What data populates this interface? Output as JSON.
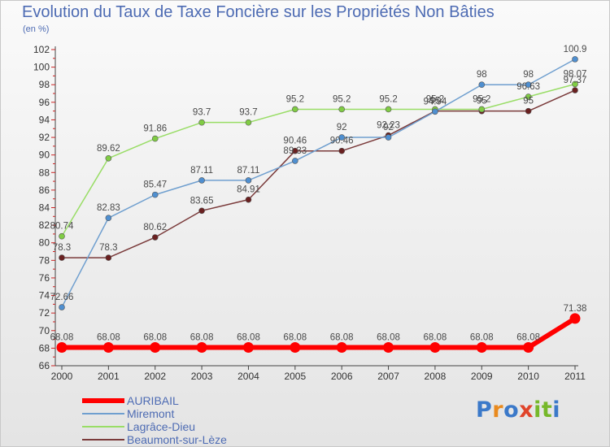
{
  "header": {
    "title": "Evolution du Taux de Taxe Foncière sur les Propriétés Non Bâties",
    "unit": "(en %)"
  },
  "logo": {
    "text": "Proxiti"
  },
  "chart_data": {
    "type": "line",
    "title": "Evolution du Taux de Taxe Foncière sur les Propriétés Non Bâties",
    "ylabel": "(en %)",
    "xlabel": "",
    "ylim": [
      66,
      102
    ],
    "yticks": [
      66,
      68,
      70,
      72,
      74,
      76,
      78,
      80,
      82,
      84,
      86,
      88,
      90,
      92,
      94,
      96,
      98,
      100,
      102
    ],
    "grid": false,
    "legend_position": "bottom",
    "x": [
      "2000",
      "2001",
      "2002",
      "2003",
      "2004",
      "2005",
      "2006",
      "2007",
      "2008",
      "2009",
      "2010",
      "2011"
    ],
    "series": [
      {
        "name": "AURIBAIL",
        "color": "#ff0000",
        "values": [
          68.08,
          68.08,
          68.08,
          68.08,
          68.08,
          68.08,
          68.08,
          68.08,
          68.08,
          68.08,
          68.08,
          71.38
        ],
        "labels": [
          "68.08",
          "68.08",
          "68.08",
          "68.08",
          "68.08",
          "68.08",
          "68.08",
          "68.08",
          "68.08",
          "68.08",
          "68.08",
          "71.38"
        ]
      },
      {
        "name": "Miremont",
        "color": "#6f9fcf",
        "marker": "#4f8fd0",
        "values": [
          72.66,
          82.83,
          85.47,
          87.11,
          87.11,
          89.33,
          92,
          92,
          94.94,
          98,
          98,
          100.9
        ],
        "labels": [
          "72.66",
          "82.83",
          "85.47",
          "87.11",
          "87.11",
          "89.33",
          "92",
          "92",
          "94.94",
          "98",
          "98",
          "100.9"
        ]
      },
      {
        "name": "Lagrâce-Dieu",
        "color": "#99dd66",
        "marker": "#80cc44",
        "values": [
          80.74,
          89.62,
          91.86,
          93.7,
          93.7,
          95.2,
          95.2,
          95.2,
          95.2,
          95.2,
          96.63,
          98.07
        ],
        "labels": [
          "80.74",
          "89.62",
          "91.86",
          "93.7",
          "93.7",
          "95.2",
          "95.2",
          "95.2",
          "95.2",
          "95.2",
          "96.63",
          "98.07"
        ]
      },
      {
        "name": "Beaumont-sur-Lèze",
        "color": "#7a3a3a",
        "marker": "#6a2020",
        "values": [
          78.3,
          78.3,
          80.62,
          83.65,
          84.91,
          90.46,
          90.46,
          92.23,
          95,
          95,
          95,
          97.37
        ],
        "labels": [
          "78.3",
          "78.3",
          "80.62",
          "83.65",
          "84.91",
          "90.46",
          "90.46",
          "92.23",
          "95",
          "95",
          "95",
          "97.37"
        ]
      }
    ]
  }
}
